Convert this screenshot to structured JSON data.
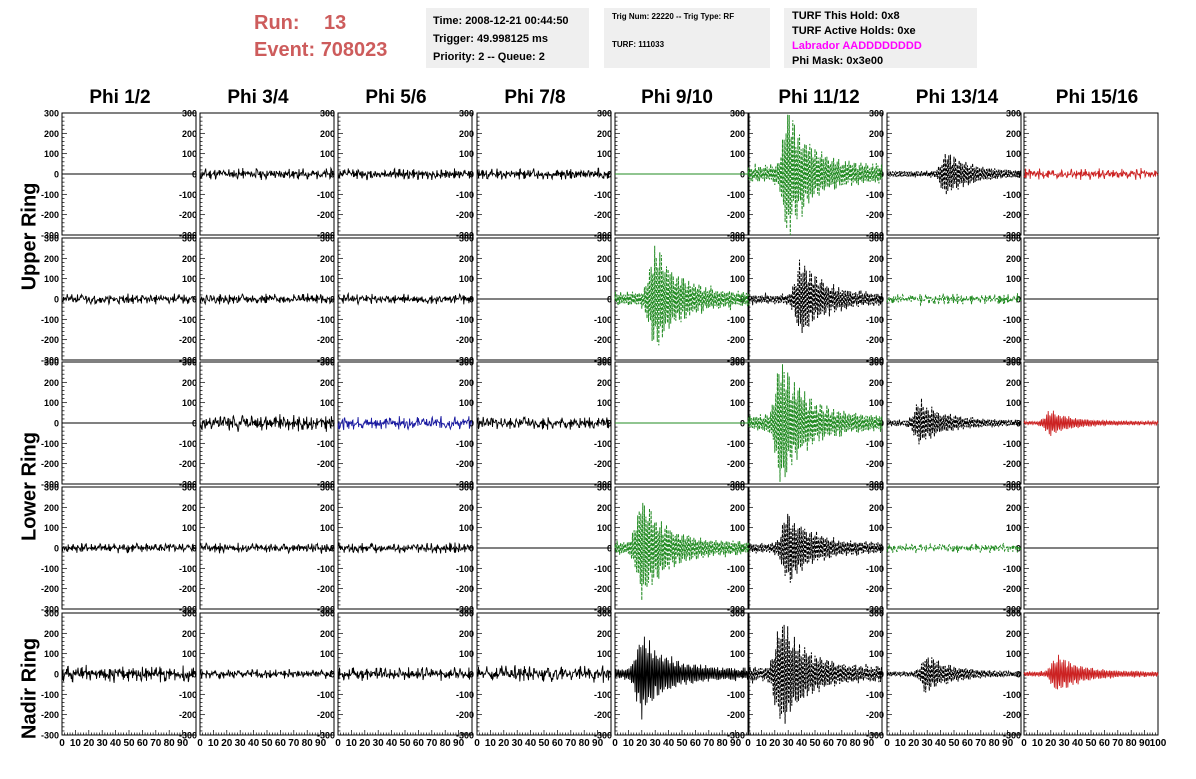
{
  "run_info": {
    "run_label": "Run:",
    "run_value": "13",
    "event_label": "Event:",
    "event_value": "708023"
  },
  "info_box_1": {
    "time": "Time: 2008-12-21 00:44:50",
    "trigger": "Trigger: 49.998125 ms",
    "priority": "Priority: 2 -- Queue: 2"
  },
  "info_box_2": {
    "trig": "Trig Num: 22220 -- Trig Type: RF",
    "turf": "TURF: 111033"
  },
  "info_box_3": {
    "hold": "TURF This Hold: 0x8",
    "active": "TURF Active Holds: 0xe",
    "labrador": "Labrador AADDDDDDDD",
    "phimask": "Phi Mask: 0x3e00"
  },
  "colors": {
    "run_info": "#cd5c5c",
    "labrador": "#ff00ff",
    "info_bg": "#efefef",
    "trace_black": "#000000",
    "trace_green": "#228b22",
    "trace_red": "#cc2222",
    "trace_blue": "#1a1aa0"
  },
  "columns": [
    "Phi 1/2",
    "Phi 3/4",
    "Phi 5/6",
    "Phi 7/8",
    "Phi 9/10",
    "Phi 11/12",
    "Phi 13/14",
    "Phi 15/16"
  ],
  "ring_labels": [
    "Upper Ring",
    "Lower Ring",
    "Nadir Ring"
  ],
  "chart_data": {
    "type": "line",
    "description_of_axes": "8 columns x 5 rows of waveform panels",
    "x": {
      "range": [
        0,
        100
      ],
      "ticks": [
        0,
        10,
        20,
        30,
        40,
        50,
        60,
        70,
        80,
        90,
        100
      ],
      "tick_labels": [
        "0",
        "10",
        "20",
        "30",
        "40",
        "50",
        "60",
        "70",
        "80",
        "90",
        "100"
      ]
    },
    "y": {
      "range": [
        -300,
        300
      ],
      "ticks": [
        -300,
        -200,
        -100,
        0,
        100,
        200,
        300
      ],
      "tick_labels": [
        "-300",
        "-200",
        "-100",
        "0",
        "100",
        "200",
        "300"
      ]
    },
    "panels": [
      [
        {
          "style": "flat",
          "color": "trace_black",
          "amp": 0
        },
        {
          "style": "noise",
          "color": "trace_black",
          "amp": 30,
          "seed": 11
        },
        {
          "style": "noise",
          "color": "trace_black",
          "amp": 30,
          "seed": 12
        },
        {
          "style": "noise",
          "color": "trace_black",
          "amp": 30,
          "seed": 13
        },
        {
          "style": "flat",
          "color": "trace_green",
          "amp": 0
        },
        {
          "style": "burst",
          "color": "trace_green",
          "amp": 300,
          "peak": 30,
          "seed": 14,
          "dashed": true
        },
        {
          "style": "burst",
          "color": "trace_black",
          "amp": 110,
          "peak": 45,
          "seed": 15,
          "dashed": true
        },
        {
          "style": "noise",
          "color": "trace_red",
          "amp": 30,
          "seed": 16
        }
      ],
      [
        {
          "style": "noise",
          "color": "trace_black",
          "amp": 28,
          "seed": 21
        },
        {
          "style": "noise",
          "color": "trace_black",
          "amp": 28,
          "seed": 22
        },
        {
          "style": "noise",
          "color": "trace_black",
          "amp": 28,
          "seed": 23
        },
        {
          "style": "flat",
          "color": "trace_black",
          "amp": 0
        },
        {
          "style": "burst",
          "color": "trace_green",
          "amp": 250,
          "peak": 30,
          "seed": 24,
          "dashed": true
        },
        {
          "style": "burst",
          "color": "trace_black",
          "amp": 180,
          "peak": 40,
          "seed": 25,
          "dashed": true
        },
        {
          "style": "noise",
          "color": "trace_green",
          "amp": 30,
          "seed": 26,
          "dashed": true
        },
        {
          "style": "flat",
          "color": "trace_black",
          "amp": 0
        }
      ],
      [
        {
          "style": "flat",
          "color": "trace_black",
          "amp": 0
        },
        {
          "style": "noise",
          "color": "trace_black",
          "amp": 45,
          "seed": 31
        },
        {
          "style": "noise",
          "color": "trace_blue",
          "amp": 35,
          "seed": 32
        },
        {
          "style": "noise",
          "color": "trace_black",
          "amp": 35,
          "seed": 33
        },
        {
          "style": "flat",
          "color": "trace_green",
          "amp": 0
        },
        {
          "style": "burst",
          "color": "trace_green",
          "amp": 300,
          "peak": 25,
          "seed": 34,
          "dashed": true
        },
        {
          "style": "burst",
          "color": "trace_black",
          "amp": 110,
          "peak": 25,
          "seed": 35,
          "dashed": true
        },
        {
          "style": "burst",
          "color": "trace_red",
          "amp": 60,
          "peak": 20,
          "seed": 36
        }
      ],
      [
        {
          "style": "noise",
          "color": "trace_black",
          "amp": 28,
          "seed": 41
        },
        {
          "style": "noise",
          "color": "trace_black",
          "amp": 28,
          "seed": 42
        },
        {
          "style": "noise",
          "color": "trace_black",
          "amp": 28,
          "seed": 43
        },
        {
          "style": "flat",
          "color": "trace_black",
          "amp": 0
        },
        {
          "style": "burst",
          "color": "trace_green",
          "amp": 250,
          "peak": 20,
          "seed": 44,
          "dashed": true
        },
        {
          "style": "burst",
          "color": "trace_black",
          "amp": 180,
          "peak": 30,
          "seed": 45,
          "dashed": true
        },
        {
          "style": "noise",
          "color": "trace_green",
          "amp": 25,
          "seed": 46,
          "dashed": true
        },
        {
          "style": "flat",
          "color": "trace_black",
          "amp": 0
        }
      ],
      [
        {
          "style": "noise",
          "color": "trace_black",
          "amp": 45,
          "seed": 51
        },
        {
          "style": "noise",
          "color": "trace_black",
          "amp": 25,
          "seed": 52
        },
        {
          "style": "noise",
          "color": "trace_black",
          "amp": 35,
          "seed": 53
        },
        {
          "style": "noise",
          "color": "trace_black",
          "amp": 45,
          "seed": 54
        },
        {
          "style": "burst",
          "color": "trace_black",
          "amp": 200,
          "peak": 20,
          "seed": 55
        },
        {
          "style": "burst",
          "color": "trace_black",
          "amp": 270,
          "peak": 25,
          "seed": 56,
          "dashed": true
        },
        {
          "style": "burst",
          "color": "trace_black",
          "amp": 90,
          "peak": 30,
          "seed": 57,
          "dashed": true
        },
        {
          "style": "burst",
          "color": "trace_red",
          "amp": 90,
          "peak": 25,
          "seed": 58
        }
      ]
    ]
  }
}
